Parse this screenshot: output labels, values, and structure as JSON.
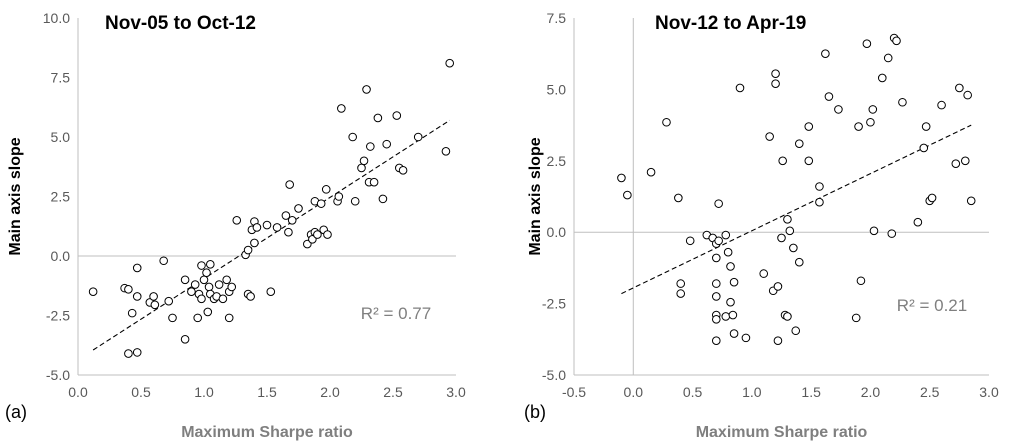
{
  "chart_data": [
    {
      "type": "scatter",
      "panel_label": "(a)",
      "title": "Nov-05 to Oct-12",
      "xlabel": "Maximum Sharpe ratio",
      "ylabel": "Main axis slope",
      "xlim": [
        0.0,
        3.0
      ],
      "ylim": [
        -5.0,
        10.0
      ],
      "xticks": [
        0.0,
        0.5,
        1.0,
        1.5,
        2.0,
        2.5,
        3.0
      ],
      "yticks": [
        -5.0,
        -2.5,
        0.0,
        2.5,
        5.0,
        7.5,
        10.0
      ],
      "xtick_labels": [
        "0.0",
        "0.5",
        "1.0",
        "1.5",
        "2.0",
        "2.5",
        "3.0"
      ],
      "ytick_labels": [
        "-5.0",
        "-2.5",
        "0.0",
        "2.5",
        "5.0",
        "7.5",
        "10.0"
      ],
      "grid": false,
      "r2_label": "R² = 0.77",
      "trendline": {
        "x": [
          0.12,
          2.95
        ],
        "y": [
          -3.95,
          5.7
        ]
      },
      "points": [
        [
          0.12,
          -1.5
        ],
        [
          0.37,
          -1.35
        ],
        [
          0.4,
          -1.4
        ],
        [
          0.4,
          -4.1
        ],
        [
          0.43,
          -2.4
        ],
        [
          0.47,
          -4.05
        ],
        [
          0.47,
          -0.5
        ],
        [
          0.47,
          -1.7
        ],
        [
          0.57,
          -1.95
        ],
        [
          0.6,
          -1.7
        ],
        [
          0.61,
          -2.05
        ],
        [
          0.68,
          -0.2
        ],
        [
          0.72,
          -1.9
        ],
        [
          0.75,
          -2.6
        ],
        [
          0.85,
          -3.5
        ],
        [
          0.85,
          -1.0
        ],
        [
          0.9,
          -1.5
        ],
        [
          0.93,
          -1.2
        ],
        [
          0.95,
          -2.6
        ],
        [
          0.96,
          -1.6
        ],
        [
          0.98,
          -1.8
        ],
        [
          0.98,
          -0.4
        ],
        [
          1.0,
          -1.0
        ],
        [
          1.02,
          -0.7
        ],
        [
          1.03,
          -2.35
        ],
        [
          1.04,
          -1.3
        ],
        [
          1.05,
          -0.35
        ],
        [
          1.05,
          -1.6
        ],
        [
          1.08,
          -1.8
        ],
        [
          1.1,
          -1.7
        ],
        [
          1.12,
          -1.2
        ],
        [
          1.15,
          -1.8
        ],
        [
          1.18,
          -1.0
        ],
        [
          1.2,
          -1.5
        ],
        [
          1.2,
          -2.6
        ],
        [
          1.22,
          -1.3
        ],
        [
          1.26,
          1.5
        ],
        [
          1.33,
          0.05
        ],
        [
          1.35,
          -1.6
        ],
        [
          1.35,
          0.25
        ],
        [
          1.37,
          -1.7
        ],
        [
          1.38,
          1.1
        ],
        [
          1.4,
          1.45
        ],
        [
          1.4,
          0.55
        ],
        [
          1.42,
          1.2
        ],
        [
          1.5,
          1.3
        ],
        [
          1.53,
          -1.5
        ],
        [
          1.58,
          1.2
        ],
        [
          1.65,
          1.7
        ],
        [
          1.67,
          1.0
        ],
        [
          1.68,
          3.0
        ],
        [
          1.7,
          1.5
        ],
        [
          1.75,
          2.0
        ],
        [
          1.82,
          0.5
        ],
        [
          1.85,
          0.9
        ],
        [
          1.86,
          0.7
        ],
        [
          1.88,
          1.0
        ],
        [
          1.88,
          2.3
        ],
        [
          1.9,
          0.9
        ],
        [
          1.93,
          2.2
        ],
        [
          1.95,
          1.1
        ],
        [
          1.97,
          2.8
        ],
        [
          1.98,
          0.9
        ],
        [
          2.06,
          2.3
        ],
        [
          2.07,
          2.5
        ],
        [
          2.09,
          6.2
        ],
        [
          2.18,
          5.0
        ],
        [
          2.2,
          2.3
        ],
        [
          2.25,
          3.7
        ],
        [
          2.27,
          4.0
        ],
        [
          2.29,
          7.0
        ],
        [
          2.31,
          3.1
        ],
        [
          2.32,
          4.6
        ],
        [
          2.35,
          3.1
        ],
        [
          2.38,
          5.8
        ],
        [
          2.42,
          2.4
        ],
        [
          2.45,
          4.7
        ],
        [
          2.53,
          5.9
        ],
        [
          2.55,
          3.7
        ],
        [
          2.58,
          3.6
        ],
        [
          2.7,
          5.0
        ],
        [
          2.92,
          4.4
        ],
        [
          2.95,
          8.1
        ]
      ]
    },
    {
      "type": "scatter",
      "panel_label": "(b)",
      "title": "Nov-12 to Apr-19",
      "xlabel": "Maximum Sharpe ratio",
      "ylabel": "Main axis slope",
      "xlim": [
        -0.5,
        3.0
      ],
      "ylim": [
        -5.0,
        7.5
      ],
      "xticks": [
        -0.5,
        0.0,
        0.5,
        1.0,
        1.5,
        2.0,
        2.5,
        3.0
      ],
      "yticks": [
        -5.0,
        -2.5,
        0.0,
        2.5,
        5.0,
        7.5
      ],
      "xtick_labels": [
        "-0.5",
        "0.0",
        "0.5",
        "1.0",
        "1.5",
        "2.0",
        "2.5",
        "3.0"
      ],
      "ytick_labels": [
        "-5.0",
        "-2.5",
        "0.0",
        "2.5",
        "5.0",
        "7.5"
      ],
      "grid": false,
      "r2_label": "R² = 0.21",
      "trendline": {
        "x": [
          -0.1,
          2.85
        ],
        "y": [
          -2.15,
          3.75
        ]
      },
      "points": [
        [
          -0.1,
          1.9
        ],
        [
          -0.05,
          1.3
        ],
        [
          0.15,
          2.1
        ],
        [
          0.28,
          3.85
        ],
        [
          0.38,
          1.2
        ],
        [
          0.4,
          -1.8
        ],
        [
          0.4,
          -2.15
        ],
        [
          0.48,
          -0.3
        ],
        [
          0.62,
          -0.1
        ],
        [
          0.67,
          -0.2
        ],
        [
          0.7,
          -0.4
        ],
        [
          0.7,
          -0.9
        ],
        [
          0.7,
          -1.8
        ],
        [
          0.7,
          -2.25
        ],
        [
          0.7,
          -2.9
        ],
        [
          0.7,
          -3.05
        ],
        [
          0.7,
          -3.8
        ],
        [
          0.72,
          1.0
        ],
        [
          0.72,
          -0.3
        ],
        [
          0.78,
          -0.1
        ],
        [
          0.78,
          -2.95
        ],
        [
          0.8,
          -0.7
        ],
        [
          0.82,
          -1.2
        ],
        [
          0.82,
          -2.45
        ],
        [
          0.84,
          -2.9
        ],
        [
          0.85,
          -1.75
        ],
        [
          0.85,
          -3.55
        ],
        [
          0.9,
          5.05
        ],
        [
          0.95,
          -3.7
        ],
        [
          1.1,
          -1.45
        ],
        [
          1.15,
          3.35
        ],
        [
          1.18,
          -2.05
        ],
        [
          1.2,
          5.55
        ],
        [
          1.2,
          5.2
        ],
        [
          1.22,
          -1.9
        ],
        [
          1.22,
          -3.8
        ],
        [
          1.25,
          -0.2
        ],
        [
          1.26,
          2.5
        ],
        [
          1.28,
          -2.9
        ],
        [
          1.3,
          -2.95
        ],
        [
          1.3,
          0.45
        ],
        [
          1.32,
          0.05
        ],
        [
          1.35,
          -0.55
        ],
        [
          1.37,
          -3.45
        ],
        [
          1.4,
          3.1
        ],
        [
          1.4,
          -1.05
        ],
        [
          1.48,
          2.5
        ],
        [
          1.48,
          3.7
        ],
        [
          1.57,
          1.6
        ],
        [
          1.57,
          1.05
        ],
        [
          1.62,
          6.25
        ],
        [
          1.65,
          4.75
        ],
        [
          1.73,
          4.3
        ],
        [
          1.88,
          -3.0
        ],
        [
          1.9,
          3.7
        ],
        [
          1.92,
          -1.7
        ],
        [
          1.97,
          6.6
        ],
        [
          2.0,
          3.85
        ],
        [
          2.02,
          4.3
        ],
        [
          2.03,
          0.05
        ],
        [
          2.1,
          5.4
        ],
        [
          2.15,
          6.1
        ],
        [
          2.18,
          -0.05
        ],
        [
          2.2,
          6.8
        ],
        [
          2.22,
          6.7
        ],
        [
          2.27,
          4.55
        ],
        [
          2.4,
          0.35
        ],
        [
          2.45,
          2.95
        ],
        [
          2.47,
          3.7
        ],
        [
          2.5,
          1.1
        ],
        [
          2.52,
          1.2
        ],
        [
          2.6,
          4.45
        ],
        [
          2.72,
          2.4
        ],
        [
          2.75,
          5.05
        ],
        [
          2.8,
          2.5
        ],
        [
          2.82,
          4.8
        ],
        [
          2.85,
          1.1
        ]
      ]
    }
  ]
}
